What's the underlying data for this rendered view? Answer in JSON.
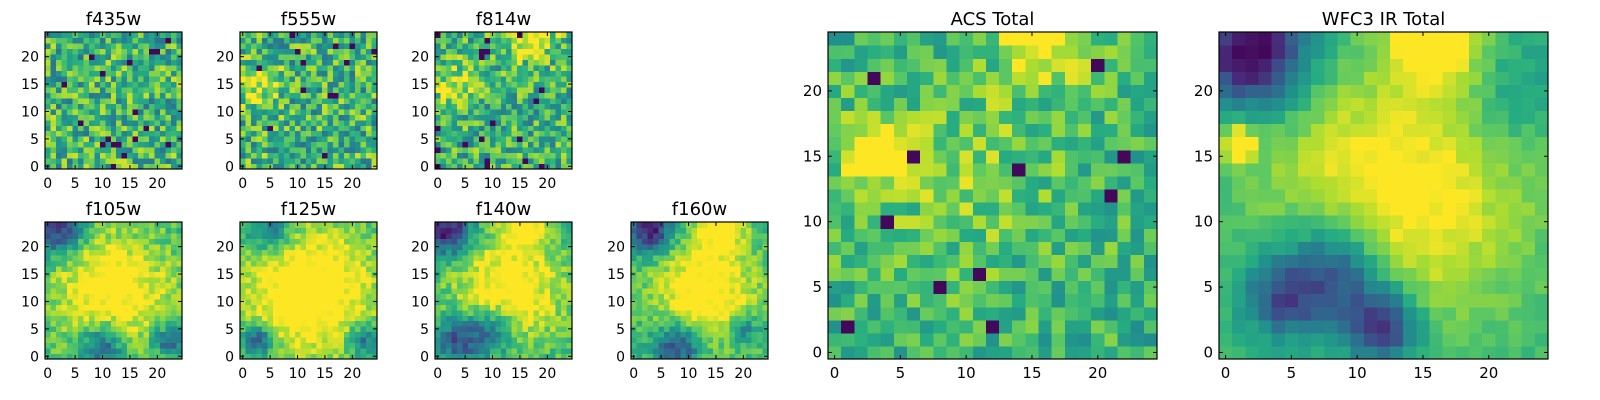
{
  "figure": {
    "colormap": "viridis",
    "axis_color": "#000000"
  },
  "chart_data": [
    {
      "type": "heatmap",
      "title": "f435w",
      "xticks": [
        0,
        5,
        10,
        15,
        20
      ],
      "yticks": [
        0,
        5,
        10,
        15,
        20
      ],
      "grid_size": [
        25,
        25
      ],
      "xlim": [
        0,
        25
      ],
      "ylim": [
        0,
        25
      ],
      "grid": false
    },
    {
      "type": "heatmap",
      "title": "f555w",
      "xticks": [
        0,
        5,
        10,
        15,
        20
      ],
      "yticks": [
        0,
        5,
        10,
        15,
        20
      ],
      "grid_size": [
        25,
        25
      ],
      "xlim": [
        0,
        25
      ],
      "ylim": [
        0,
        25
      ],
      "grid": false
    },
    {
      "type": "heatmap",
      "title": "f814w",
      "xticks": [
        0,
        5,
        10,
        15,
        20
      ],
      "yticks": [
        0,
        5,
        10,
        15,
        20
      ],
      "grid_size": [
        25,
        25
      ],
      "xlim": [
        0,
        25
      ],
      "ylim": [
        0,
        25
      ],
      "grid": false
    },
    {
      "type": "heatmap",
      "title": "f105w",
      "xticks": [
        0,
        5,
        10,
        15,
        20
      ],
      "yticks": [
        0,
        5,
        10,
        15,
        20
      ],
      "grid_size": [
        25,
        25
      ],
      "xlim": [
        0,
        25
      ],
      "ylim": [
        0,
        25
      ],
      "grid": false
    },
    {
      "type": "heatmap",
      "title": "f125w",
      "xticks": [
        0,
        5,
        10,
        15,
        20
      ],
      "yticks": [
        0,
        5,
        10,
        15,
        20
      ],
      "grid_size": [
        25,
        25
      ],
      "xlim": [
        0,
        25
      ],
      "ylim": [
        0,
        25
      ],
      "grid": false
    },
    {
      "type": "heatmap",
      "title": "f140w",
      "xticks": [
        0,
        5,
        10,
        15,
        20
      ],
      "yticks": [
        0,
        5,
        10,
        15,
        20
      ],
      "grid_size": [
        25,
        25
      ],
      "xlim": [
        0,
        25
      ],
      "ylim": [
        0,
        25
      ],
      "grid": false
    },
    {
      "type": "heatmap",
      "title": "f160w",
      "xticks": [
        0,
        5,
        10,
        15,
        20
      ],
      "yticks": [
        0,
        5,
        10,
        15,
        20
      ],
      "grid_size": [
        25,
        25
      ],
      "xlim": [
        0,
        25
      ],
      "ylim": [
        0,
        25
      ],
      "grid": false
    },
    {
      "type": "heatmap",
      "title": "ACS Total",
      "xticks": [
        0,
        5,
        10,
        15,
        20
      ],
      "yticks": [
        0,
        5,
        10,
        15,
        20
      ],
      "grid_size": [
        25,
        25
      ],
      "xlim": [
        0,
        25
      ],
      "ylim": [
        0,
        25
      ],
      "grid": false
    },
    {
      "type": "heatmap",
      "title": "WFC3 IR Total",
      "xticks": [
        0,
        5,
        10,
        15,
        20
      ],
      "yticks": [
        0,
        5,
        10,
        15,
        20
      ],
      "grid_size": [
        25,
        25
      ],
      "xlim": [
        0,
        25
      ],
      "ylim": [
        0,
        25
      ],
      "grid": false
    }
  ]
}
